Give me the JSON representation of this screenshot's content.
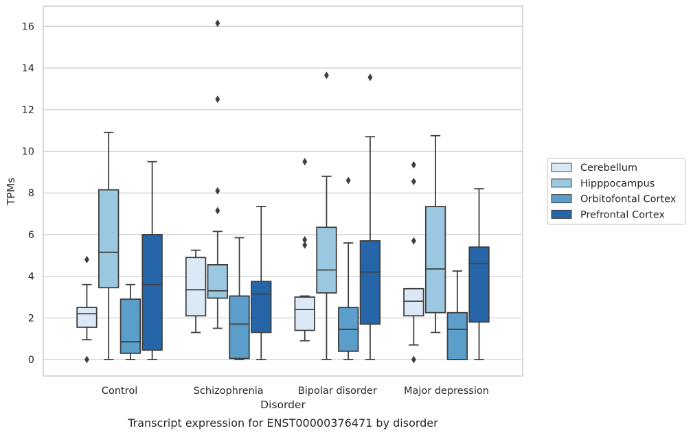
{
  "caption": "Transcript expression for ENST00000376471 by disorder",
  "chart_data": {
    "type": "box",
    "xlabel": "Disorder",
    "ylabel": "TPMs",
    "ylim": [
      -0.8,
      17
    ],
    "yticks": [
      0,
      2,
      4,
      6,
      8,
      10,
      12,
      14,
      16
    ],
    "grid": "horizontal",
    "legend_position": "right",
    "categories": [
      "Control",
      "Schizophrenia",
      "Bipolar disorder",
      "Major depression"
    ],
    "series": [
      {
        "name": "Cerebellum",
        "color": "#dbe9f6",
        "boxes": [
          {
            "whislo": 0.95,
            "q1": 1.55,
            "med": 2.2,
            "q3": 2.5,
            "whishi": 3.6,
            "fliers": [
              0.0,
              4.8
            ]
          },
          {
            "whislo": 1.3,
            "q1": 2.1,
            "med": 3.35,
            "q3": 4.9,
            "whishi": 5.25,
            "fliers": []
          },
          {
            "whislo": 0.9,
            "q1": 1.4,
            "med": 2.4,
            "q3": 3.0,
            "whishi": 3.05,
            "fliers": [
              5.5,
              5.75,
              9.5
            ]
          },
          {
            "whislo": 0.7,
            "q1": 2.1,
            "med": 2.8,
            "q3": 3.4,
            "whishi": 3.4,
            "fliers": [
              0.0,
              5.7,
              8.55,
              9.35
            ]
          }
        ]
      },
      {
        "name": "Hipppocampus",
        "color": "#9ac8e0",
        "boxes": [
          {
            "whislo": 0.0,
            "q1": 3.45,
            "med": 5.15,
            "q3": 8.15,
            "whishi": 10.9,
            "fliers": []
          },
          {
            "whislo": 1.5,
            "q1": 2.95,
            "med": 3.3,
            "q3": 4.55,
            "whishi": 6.15,
            "fliers": [
              7.15,
              8.1,
              12.5,
              16.15
            ]
          },
          {
            "whislo": 0.0,
            "q1": 3.2,
            "med": 4.3,
            "q3": 6.35,
            "whishi": 8.8,
            "fliers": [
              13.65
            ]
          },
          {
            "whislo": 1.3,
            "q1": 2.25,
            "med": 4.35,
            "q3": 7.35,
            "whishi": 10.75,
            "fliers": []
          }
        ]
      },
      {
        "name": "Orbitofontal Cortex",
        "color": "#5a9ec9",
        "boxes": [
          {
            "whislo": 0.0,
            "q1": 0.3,
            "med": 0.85,
            "q3": 2.9,
            "whishi": 3.6,
            "fliers": []
          },
          {
            "whislo": 0.0,
            "q1": 0.05,
            "med": 1.7,
            "q3": 3.05,
            "whishi": 5.85,
            "fliers": []
          },
          {
            "whislo": 0.0,
            "q1": 0.4,
            "med": 1.45,
            "q3": 2.5,
            "whishi": 5.6,
            "fliers": [
              8.6
            ]
          },
          {
            "whislo": 0.0,
            "q1": 0.0,
            "med": 1.45,
            "q3": 2.25,
            "whishi": 4.25,
            "fliers": []
          }
        ]
      },
      {
        "name": "Prefrontal Cortex",
        "color": "#2666a8",
        "boxes": [
          {
            "whislo": 0.0,
            "q1": 0.45,
            "med": 3.6,
            "q3": 6.0,
            "whishi": 9.5,
            "fliers": []
          },
          {
            "whislo": 0.0,
            "q1": 1.3,
            "med": 3.15,
            "q3": 3.75,
            "whishi": 7.35,
            "fliers": []
          },
          {
            "whislo": 0.0,
            "q1": 1.7,
            "med": 4.2,
            "q3": 5.7,
            "whishi": 10.7,
            "fliers": [
              13.55
            ]
          },
          {
            "whislo": 0.0,
            "q1": 1.8,
            "med": 4.6,
            "q3": 5.4,
            "whishi": 8.2,
            "fliers": []
          }
        ]
      }
    ]
  }
}
